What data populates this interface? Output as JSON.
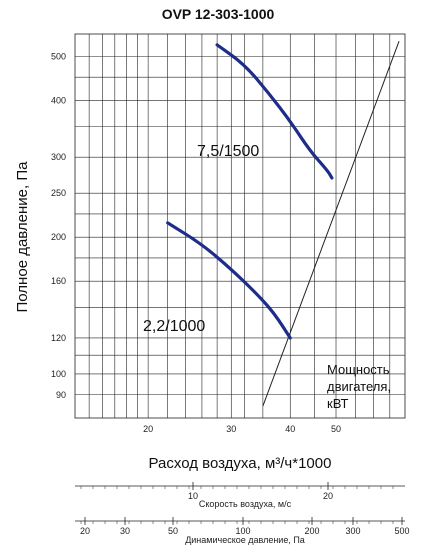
{
  "chart_data": {
    "type": "line",
    "title": "OVP 12-303-1000",
    "xlabel": "Расход воздуха, м³/ч*1000",
    "ylabel": "Полное давление, Па",
    "x_scale": "log",
    "y_scale": "log",
    "xlim": [
      14,
      70
    ],
    "ylim": [
      80,
      560
    ],
    "x_ticks": [
      20,
      30,
      40,
      50
    ],
    "y_ticks": [
      90,
      100,
      120,
      160,
      200,
      250,
      300,
      400,
      500
    ],
    "grid": true,
    "series": [
      {
        "name": "7,5/1500",
        "color": "#1f2d8a",
        "points": [
          [
            28,
            530
          ],
          [
            32,
            480
          ],
          [
            36,
            415
          ],
          [
            40,
            360
          ],
          [
            44,
            310
          ],
          [
            48,
            280
          ],
          [
            49,
            270
          ]
        ]
      },
      {
        "name": "2,2/1000",
        "color": "#1f2d8a",
        "points": [
          [
            22,
            215
          ],
          [
            26,
            193
          ],
          [
            30,
            170
          ],
          [
            34,
            150
          ],
          [
            37,
            136
          ],
          [
            40,
            120
          ]
        ]
      }
    ],
    "power_line": {
      "label": "Мощность двигателя, кВТ",
      "points": [
        [
          35,
          85
        ],
        [
          68,
          540
        ]
      ]
    },
    "aux_axes": [
      {
        "label": "Скорость воздуха, м/с",
        "ticks": [
          10,
          20
        ]
      },
      {
        "label": "Динамическое давление, Па",
        "ticks": [
          20,
          30,
          50,
          100,
          200,
          300,
          500
        ]
      }
    ]
  }
}
